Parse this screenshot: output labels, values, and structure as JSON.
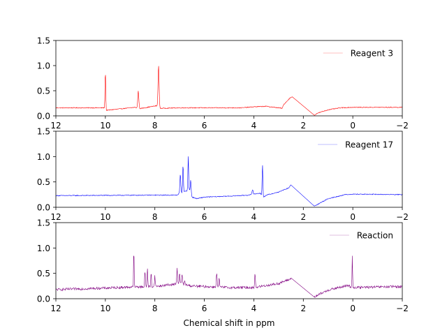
{
  "chart_data": [
    {
      "type": "line",
      "title": "",
      "xlabel": "",
      "ylabel": "",
      "xlim": [
        12,
        -2
      ],
      "ylim": [
        0,
        1.5
      ],
      "x_reversed": true,
      "xticks": [
        "12",
        "10",
        "8",
        "6",
        "4",
        "2",
        "0",
        "−2"
      ],
      "xtick_values": [
        12,
        10,
        8,
        6,
        4,
        2,
        0,
        -2
      ],
      "yticks": [
        "0.0",
        "0.5",
        "1.0",
        "1.5"
      ],
      "ytick_values": [
        0,
        0.5,
        1.0,
        1.5
      ],
      "legend_position": "top-right",
      "grid": false,
      "series": [
        {
          "name": "Reagent 3",
          "color": "#ff0000",
          "baseline": [
            [
              12,
              0.16
            ],
            [
              10.05,
              0.16
            ],
            [
              9.97,
              0.11
            ],
            [
              8.8,
              0.17
            ],
            [
              8.65,
              0.14
            ],
            [
              7.95,
              0.2
            ],
            [
              7.8,
              0.15
            ],
            [
              7.0,
              0.16
            ],
            [
              4.5,
              0.16
            ],
            [
              4.0,
              0.18
            ],
            [
              3.5,
              0.19
            ],
            [
              3.0,
              0.16
            ],
            [
              2.85,
              0.15
            ],
            [
              2.8,
              0.22
            ],
            [
              2.55,
              0.35
            ],
            [
              2.45,
              0.38
            ],
            [
              1.55,
              0.01
            ],
            [
              1.45,
              0.05
            ],
            [
              1.0,
              0.12
            ],
            [
              0.5,
              0.16
            ],
            [
              0,
              0.17
            ],
            [
              -2,
              0.17
            ]
          ],
          "peaks": [
            [
              10.0,
              0.9,
              0.02
            ],
            [
              8.67,
              0.5,
              0.03
            ],
            [
              7.85,
              1.0,
              0.03
            ]
          ],
          "noise": 0.008
        }
      ]
    },
    {
      "type": "line",
      "title": "",
      "xlabel": "",
      "ylabel": "",
      "xlim": [
        12,
        -2
      ],
      "ylim": [
        0,
        1.5
      ],
      "x_reversed": true,
      "xticks": [
        "12",
        "10",
        "8",
        "6",
        "4",
        "2",
        "0",
        "−2"
      ],
      "xtick_values": [
        12,
        10,
        8,
        6,
        4,
        2,
        0,
        -2
      ],
      "yticks": [
        "0.0",
        "0.5",
        "1.0",
        "1.5"
      ],
      "ytick_values": [
        0,
        0.5,
        1.0,
        1.5
      ],
      "legend_position": "top-right",
      "grid": false,
      "series": [
        {
          "name": "Reagent 17",
          "color": "#0000ff",
          "baseline": [
            [
              12,
              0.23
            ],
            [
              8.0,
              0.24
            ],
            [
              7.1,
              0.24
            ],
            [
              7.0,
              0.28
            ],
            [
              6.55,
              0.35
            ],
            [
              6.5,
              0.2
            ],
            [
              6.3,
              0.17
            ],
            [
              6.0,
              0.2
            ],
            [
              5.0,
              0.22
            ],
            [
              4.2,
              0.24
            ],
            [
              3.75,
              0.28
            ],
            [
              3.6,
              0.2
            ],
            [
              3.5,
              0.24
            ],
            [
              3.0,
              0.3
            ],
            [
              2.6,
              0.38
            ],
            [
              2.5,
              0.44
            ],
            [
              1.55,
              0.02
            ],
            [
              1.45,
              0.05
            ],
            [
              1.0,
              0.17
            ],
            [
              0.3,
              0.25
            ],
            [
              0,
              0.26
            ],
            [
              -2,
              0.25
            ]
          ],
          "peaks": [
            [
              6.97,
              0.65,
              0.025
            ],
            [
              6.86,
              0.85,
              0.02
            ],
            [
              6.65,
              1.0,
              0.02
            ],
            [
              6.55,
              0.55,
              0.02
            ],
            [
              4.05,
              0.35,
              0.03
            ],
            [
              3.65,
              0.85,
              0.02
            ]
          ],
          "noise": 0.008
        }
      ]
    },
    {
      "type": "line",
      "title": "",
      "xlabel": "Chemical shift in ppm",
      "ylabel": "",
      "xlim": [
        12,
        -2
      ],
      "ylim": [
        0,
        1.5
      ],
      "x_reversed": true,
      "xticks": [
        "12",
        "10",
        "8",
        "6",
        "4",
        "2",
        "0",
        "−2"
      ],
      "xtick_values": [
        12,
        10,
        8,
        6,
        4,
        2,
        0,
        -2
      ],
      "yticks": [
        "0.0",
        "0.5",
        "1.0",
        "1.5"
      ],
      "ytick_values": [
        0,
        0.5,
        1.0,
        1.5
      ],
      "legend_position": "top-right",
      "grid": false,
      "series": [
        {
          "name": "Reaction",
          "color": "#800080",
          "baseline": [
            [
              12,
              0.18
            ],
            [
              10.0,
              0.21
            ],
            [
              9.0,
              0.23
            ],
            [
              8.0,
              0.24
            ],
            [
              7.0,
              0.3
            ],
            [
              6.5,
              0.25
            ],
            [
              5.0,
              0.22
            ],
            [
              4.0,
              0.22
            ],
            [
              3.0,
              0.3
            ],
            [
              2.55,
              0.38
            ],
            [
              2.5,
              0.41
            ],
            [
              1.55,
              0.03
            ],
            [
              1.45,
              0.06
            ],
            [
              1.0,
              0.17
            ],
            [
              0.2,
              0.26
            ],
            [
              0,
              0.22
            ],
            [
              -2,
              0.24
            ]
          ],
          "peaks": [
            [
              8.85,
              1.0,
              0.015
            ],
            [
              8.4,
              0.55,
              0.02
            ],
            [
              8.3,
              0.6,
              0.02
            ],
            [
              8.15,
              0.5,
              0.02
            ],
            [
              8.0,
              0.45,
              0.02
            ],
            [
              7.1,
              0.62,
              0.02
            ],
            [
              7.0,
              0.5,
              0.02
            ],
            [
              6.9,
              0.48,
              0.025
            ],
            [
              6.8,
              0.35,
              0.02
            ],
            [
              5.5,
              0.5,
              0.025
            ],
            [
              5.4,
              0.4,
              0.02
            ],
            [
              3.95,
              0.5,
              0.02
            ],
            [
              0.02,
              0.85,
              0.015
            ]
          ],
          "noise": 0.025
        }
      ]
    }
  ]
}
